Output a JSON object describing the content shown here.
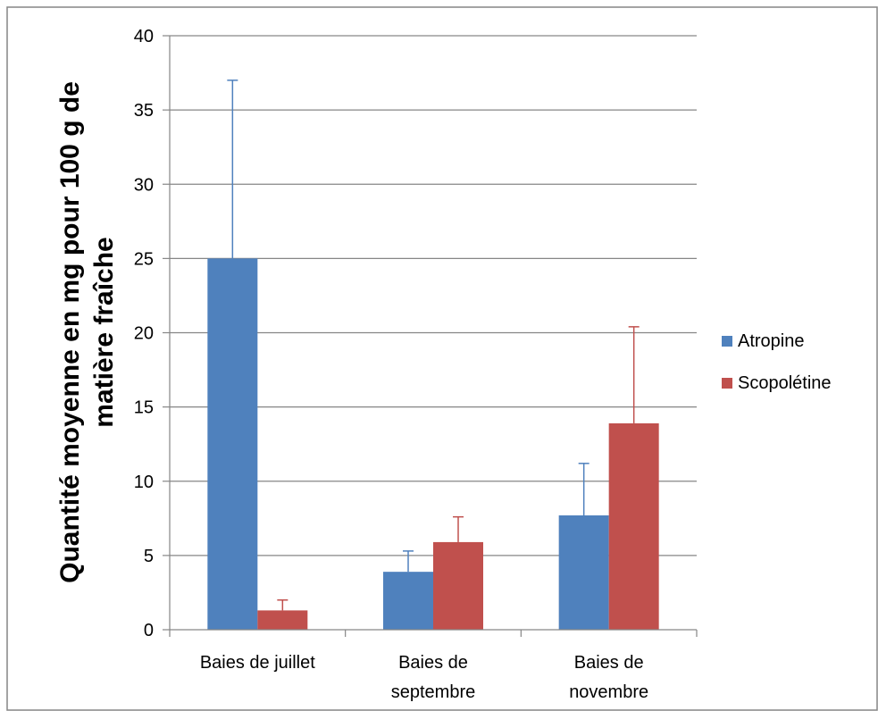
{
  "chart_data": {
    "type": "bar",
    "title": "",
    "xlabel": "",
    "ylabel": "Quantité moyenne en mg pour 100 g de matière fraîche",
    "ylabel_lines": [
      "Quantité moyenne en mg pour 100 g de",
      "matière fraîche"
    ],
    "ylim": [
      0,
      40
    ],
    "yticks": [
      "0",
      "5",
      "10",
      "15",
      "20",
      "25",
      "30",
      "35",
      "40"
    ],
    "categories": [
      [
        "Baies de juillet"
      ],
      [
        "Baies de",
        "septembre"
      ],
      [
        "Baies de",
        "novembre"
      ]
    ],
    "series": [
      {
        "name": "Atropine",
        "values": [
          25,
          3.9,
          7.7
        ],
        "error_upper": [
          37,
          5.3,
          11.2
        ],
        "color": "#4f81bd"
      },
      {
        "name": "Scopolétine",
        "values": [
          1.3,
          5.9,
          13.9
        ],
        "error_upper": [
          2.0,
          7.6,
          20.4
        ],
        "color": "#c0504d"
      }
    ],
    "grid": true,
    "legend_position": "right"
  }
}
